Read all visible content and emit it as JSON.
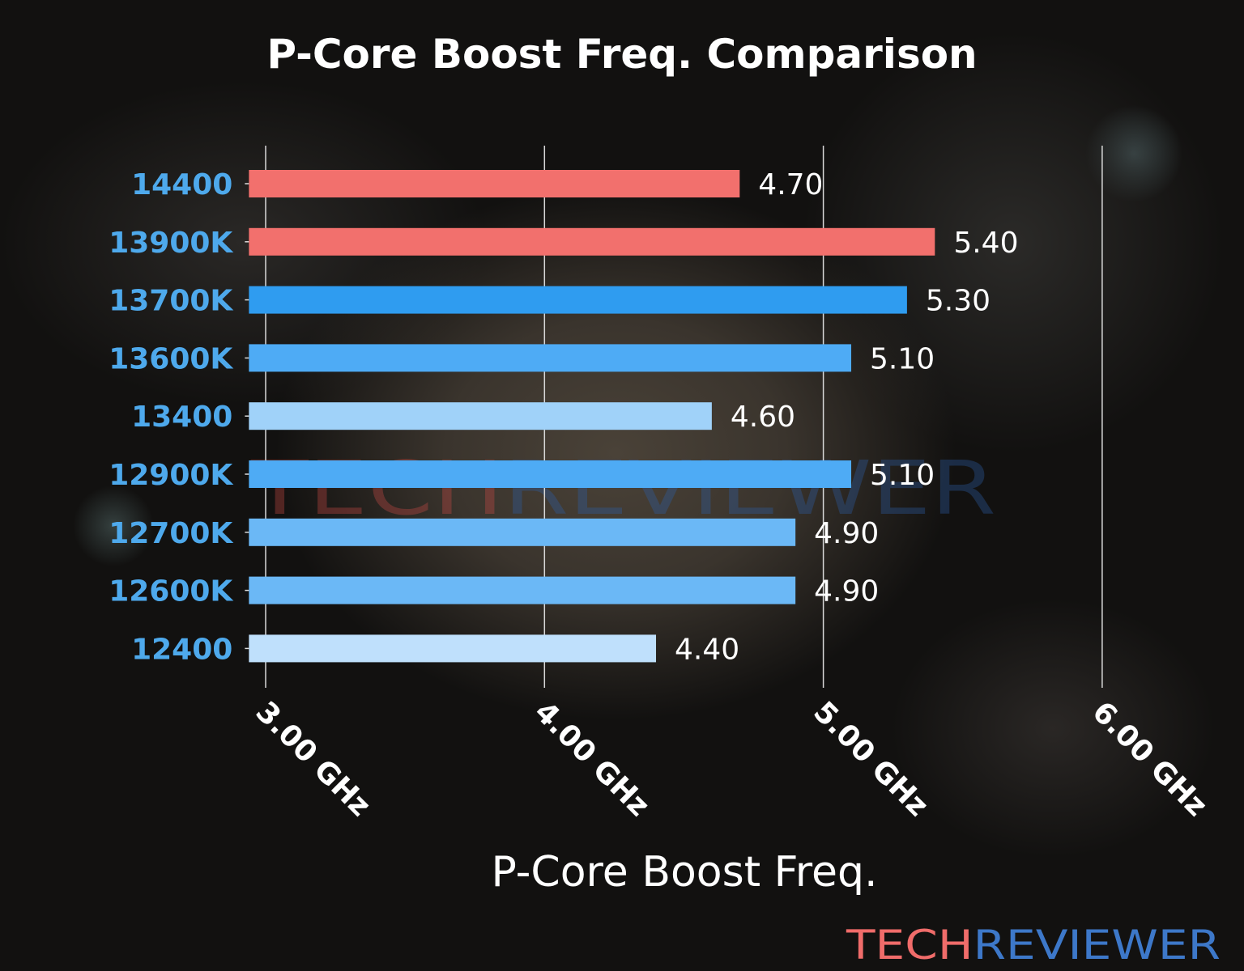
{
  "chart_data": {
    "type": "bar",
    "orientation": "horizontal",
    "title": "P-Core Boost Freq. Comparison",
    "xlabel": "P-Core Boost Freq.",
    "ylabel": "",
    "categories": [
      "14400",
      "13900K",
      "13700K",
      "13600K",
      "13400",
      "12900K",
      "12700K",
      "12600K",
      "12400"
    ],
    "values": [
      4.7,
      5.4,
      5.3,
      5.1,
      4.6,
      5.1,
      4.9,
      4.9,
      4.4
    ],
    "data_labels": [
      "4.70",
      "5.40",
      "5.30",
      "5.10",
      "4.60",
      "5.10",
      "4.90",
      "4.90",
      "4.40"
    ],
    "bar_colors": [
      "#f2706d",
      "#f2706d",
      "#2f9cf0",
      "#4eabf5",
      "#a0d2f9",
      "#4eabf5",
      "#6bb8f6",
      "#6bb8f6",
      "#bfe0fc"
    ],
    "xticks": [
      3,
      4,
      5,
      6
    ],
    "xtick_labels": [
      "3.00 GHz",
      "4.00 GHz",
      "5.00 GHz",
      "6.00 GHz"
    ],
    "xlim": [
      2.94,
      6.2
    ],
    "grid": "vertical",
    "category_label_color": "#4ea9ec"
  },
  "watermark": {
    "part1": "TECH",
    "part2": "REVIEWER",
    "color1": "#f06c6a",
    "color2": "#3d78c9"
  }
}
